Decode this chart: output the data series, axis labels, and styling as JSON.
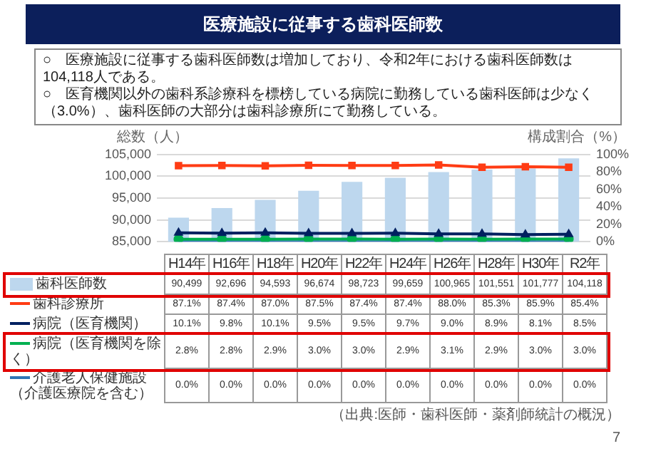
{
  "chart_data": {
    "type": "bar",
    "title": "医療施設に従事する歯科医師数",
    "subtitle": "○　医療施設に従事する歯科医師数は増加しており、令和2年における歯科医師数は104,118人である。\n○　医育機関以外の歯科系診療科を標榜している病院に勤務している歯科医師は少なく（3.0%）、歯科医師の大部分は歯科診療所にて勤務している。",
    "ylabel": "総数（人）",
    "y2label": "構成割合（%）",
    "categories": [
      "H14年",
      "H16年",
      "H18年",
      "H20年",
      "H22年",
      "H24年",
      "H26年",
      "H28年",
      "H30年",
      "R2年"
    ],
    "series": [
      {
        "name": "歯科医師数",
        "color": "#bdd7ee",
        "values": [
          90499,
          92696,
          94593,
          96674,
          98723,
          99659,
          100965,
          101551,
          101777,
          104118
        ],
        "value_labels": [
          "90,499",
          "92,696",
          "94,593",
          "96,674",
          "98,723",
          "99,659",
          "100,965",
          "101,551",
          "101,777",
          "104,118"
        ]
      },
      {
        "name": "歯科診療所",
        "type": "line",
        "axis": "y2",
        "marker": "square",
        "color": "#ff3c14",
        "values": [
          87.1,
          87.4,
          87.0,
          87.5,
          87.4,
          87.4,
          88.0,
          85.3,
          85.9,
          85.4
        ],
        "value_labels": [
          "87.1%",
          "87.4%",
          "87.0%",
          "87.5%",
          "87.4%",
          "87.4%",
          "88.0%",
          "85.3%",
          "85.9%",
          "85.4%"
        ]
      },
      {
        "name": "病院（医育機関）",
        "type": "line",
        "axis": "y2",
        "marker": "triangle",
        "color": "#002060",
        "values": [
          10.1,
          9.8,
          10.1,
          9.5,
          9.5,
          9.7,
          9.0,
          8.9,
          8.1,
          8.5
        ],
        "value_labels": [
          "10.1%",
          "9.8%",
          "10.1%",
          "9.5%",
          "9.5%",
          "9.7%",
          "9.0%",
          "8.9%",
          "8.1%",
          "8.5%"
        ]
      },
      {
        "name": "病院（医育機関を除く）",
        "type": "line",
        "axis": "y2",
        "marker": "circle",
        "color": "#00b050",
        "values": [
          2.8,
          2.8,
          2.9,
          3.0,
          3.0,
          2.9,
          3.1,
          2.9,
          3.0,
          3.0
        ],
        "value_labels": [
          "2.8%",
          "2.8%",
          "2.9%",
          "3.0%",
          "3.0%",
          "2.9%",
          "3.1%",
          "2.9%",
          "3.0%",
          "3.0%"
        ]
      },
      {
        "name": "介護老人保健施設（介護医療院を含む）",
        "type": "line",
        "axis": "y2",
        "marker": "cross",
        "color": "#2e75b6",
        "values": [
          0,
          0,
          0,
          0,
          0,
          0,
          0,
          0,
          0,
          0
        ],
        "value_labels": [
          "0.0%",
          "0.0%",
          "0.0%",
          "0.0%",
          "0.0%",
          "0.0%",
          "0.0%",
          "0.0%",
          "0.0%",
          "0.0%"
        ]
      }
    ],
    "ylim": [
      85000,
      105000
    ],
    "yticks": [
      {
        "value": 85000,
        "label": "85,000"
      },
      {
        "value": 90000,
        "label": "90,000"
      },
      {
        "value": 95000,
        "label": "95,000"
      },
      {
        "value": 100000,
        "label": "100,000"
      },
      {
        "value": 105000,
        "label": "105,000"
      }
    ],
    "y2lim": [
      0,
      100
    ],
    "y2ticks": [
      {
        "value": 0,
        "label": "0%"
      },
      {
        "value": 20,
        "label": "20%"
      },
      {
        "value": 40,
        "label": "40%"
      },
      {
        "value": 60,
        "label": "60%"
      },
      {
        "value": 80,
        "label": "80%"
      },
      {
        "value": 100,
        "label": "100%"
      }
    ],
    "grid": "y",
    "legend": "bottom",
    "line_style": "solid",
    "annotations": [
      "（出典:医師・歯科医師・薬剤師統計の概況）",
      "7"
    ]
  }
}
